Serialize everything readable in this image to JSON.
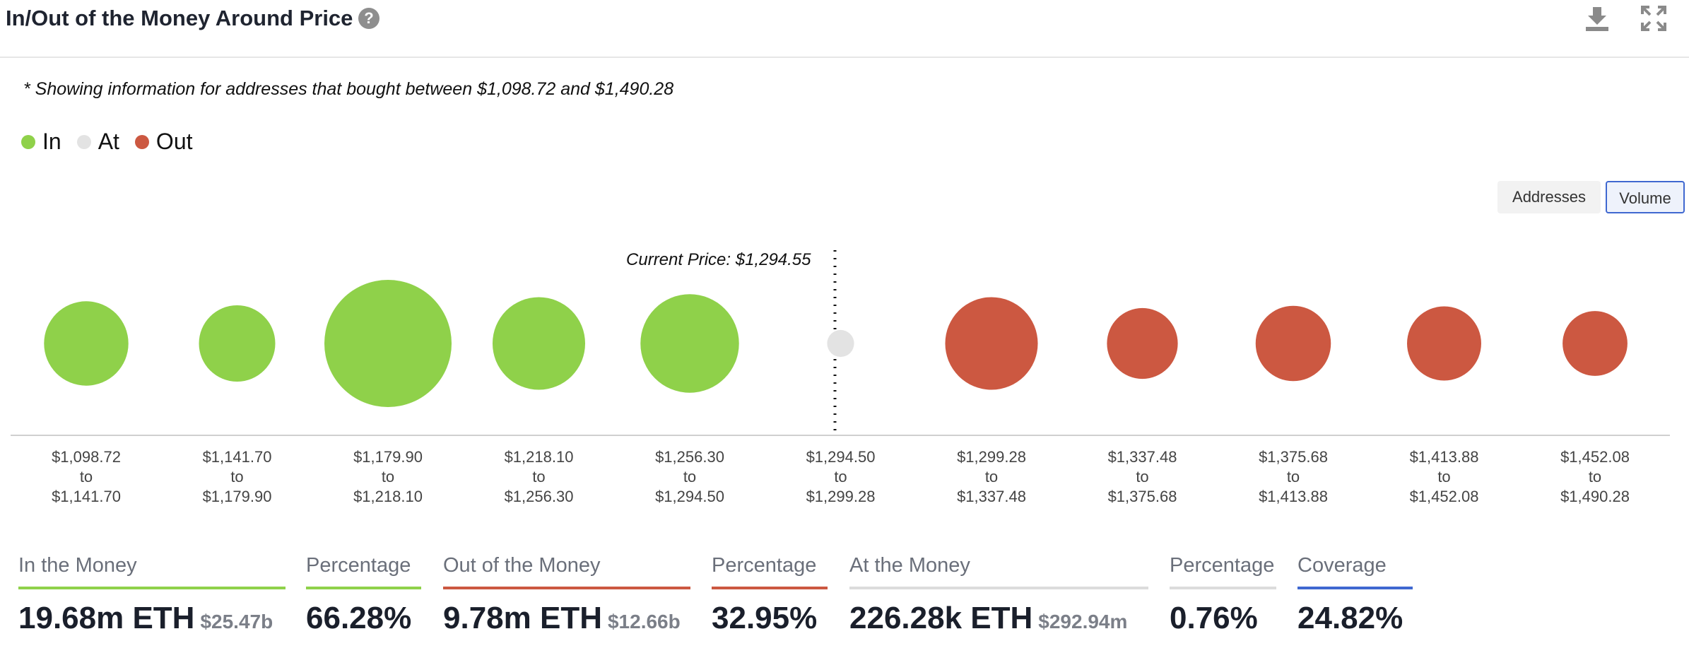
{
  "header": {
    "title": "In/Out of the Money Around Price",
    "help_glyph": "?",
    "help_icon": "question-icon",
    "download_icon": "download-icon",
    "expand_icon": "expand-icon"
  },
  "note": "* Showing information for addresses that bought between $1,098.72 and $1,490.28",
  "legend": [
    {
      "label": "In",
      "color": "#8fd14a"
    },
    {
      "label": "At",
      "color": "#e3e3e3"
    },
    {
      "label": "Out",
      "color": "#cc5841"
    }
  ],
  "toggles": {
    "addresses": "Addresses",
    "volume": "Volume",
    "active": "volume"
  },
  "colors": {
    "in": "#8fd14a",
    "at": "#e3e3e3",
    "out": "#cc5841",
    "coverage": "#3f68d0",
    "rule_at": "#dcdcdc"
  },
  "chart_data": {
    "type": "scatter",
    "current_price_label": "Current Price: $1,294.55",
    "current_price": 1294.55,
    "buckets": [
      {
        "from": "$1,098.72",
        "to": "$1,141.70",
        "status": "in",
        "relative_volume": 0.44
      },
      {
        "from": "$1,141.70",
        "to": "$1,179.90",
        "status": "in",
        "relative_volume": 0.36
      },
      {
        "from": "$1,179.90",
        "to": "$1,218.10",
        "status": "in",
        "relative_volume": 1.0
      },
      {
        "from": "$1,218.10",
        "to": "$1,256.30",
        "status": "in",
        "relative_volume": 0.53
      },
      {
        "from": "$1,256.30",
        "to": "$1,294.50",
        "status": "in",
        "relative_volume": 0.6
      },
      {
        "from": "$1,294.50",
        "to": "$1,299.28",
        "status": "at",
        "relative_volume": 0.045
      },
      {
        "from": "$1,299.28",
        "to": "$1,337.48",
        "status": "out",
        "relative_volume": 0.53
      },
      {
        "from": "$1,337.48",
        "to": "$1,375.68",
        "status": "out",
        "relative_volume": 0.31
      },
      {
        "from": "$1,375.68",
        "to": "$1,413.88",
        "status": "out",
        "relative_volume": 0.35
      },
      {
        "from": "$1,413.88",
        "to": "$1,452.08",
        "status": "out",
        "relative_volume": 0.34
      },
      {
        "from": "$1,452.08",
        "to": "$1,490.28",
        "status": "out",
        "relative_volume": 0.26
      }
    ],
    "range_separator": "to",
    "grid": false
  },
  "summary": {
    "in_the_money": {
      "label": "In the Money",
      "value": "19.68m ETH",
      "sub": "$25.47b"
    },
    "in_percentage": {
      "label": "Percentage",
      "value": "66.28%"
    },
    "out_of_the_money": {
      "label": "Out of the Money",
      "value": "9.78m ETH",
      "sub": "$12.66b"
    },
    "out_percentage": {
      "label": "Percentage",
      "value": "32.95%"
    },
    "at_the_money": {
      "label": "At the Money",
      "value": "226.28k ETH",
      "sub": "$292.94m"
    },
    "at_percentage": {
      "label": "Percentage",
      "value": "0.76%"
    },
    "coverage": {
      "label": "Coverage",
      "value": "24.82%"
    }
  }
}
